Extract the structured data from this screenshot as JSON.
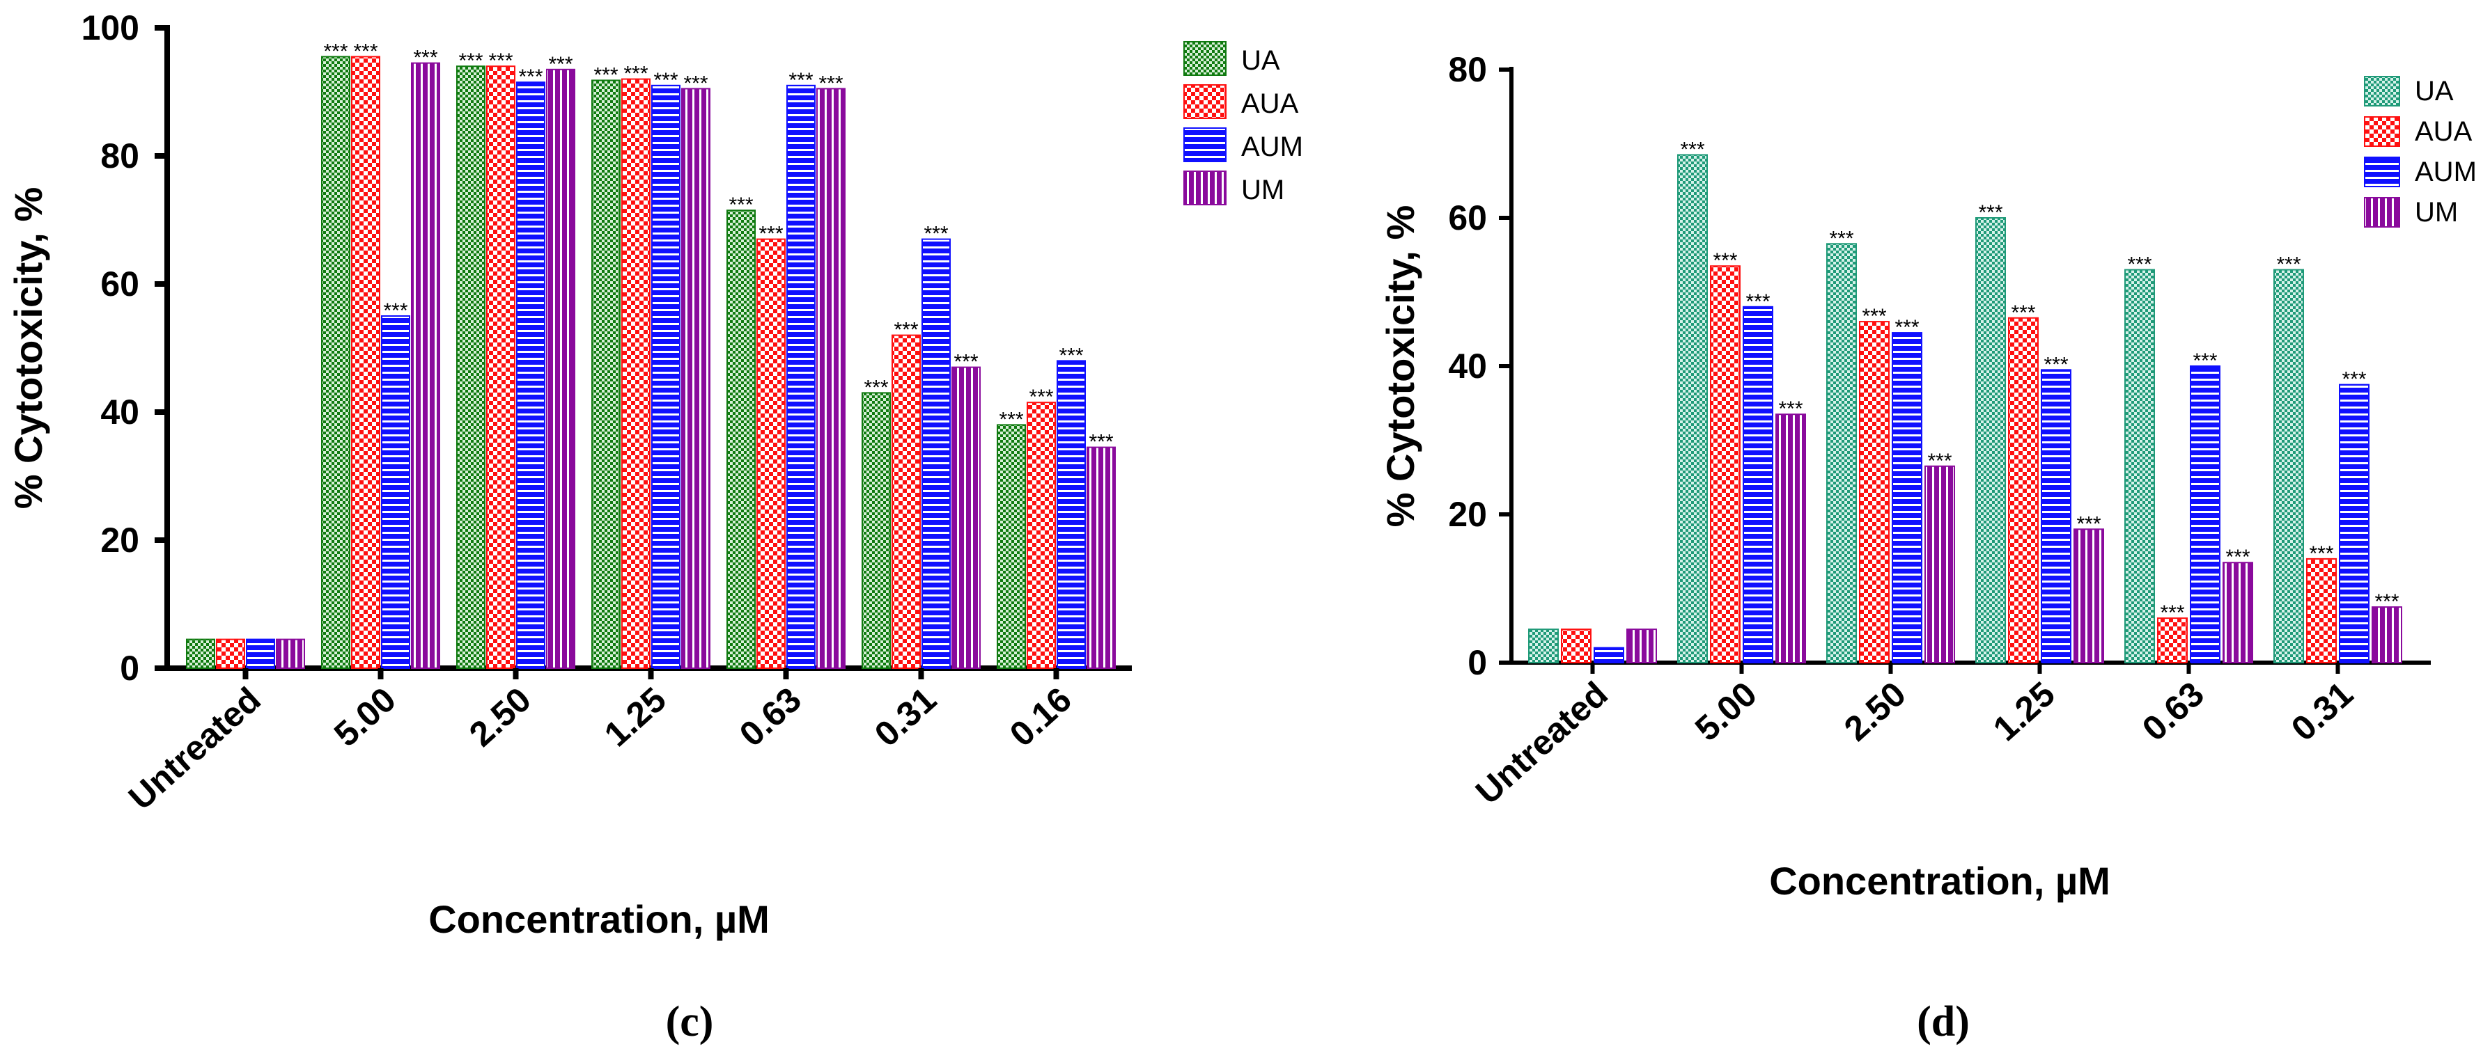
{
  "figure": {
    "panel_labels": [
      "(c)",
      "(d)"
    ]
  },
  "colors": {
    "UA_c": "#0f7a0f",
    "UA_d": "#1f9a78",
    "AUA": "#ff1010",
    "AUM": "#1010ff",
    "UM": "#8a0a9c"
  },
  "chart_data": [
    {
      "type": "bar",
      "panel": "(c)",
      "categories": [
        "Untreated",
        "5.00",
        "2.50",
        "1.25",
        "0.63",
        "0.31",
        "0.16"
      ],
      "series": [
        {
          "name": "UA",
          "values": [
            4.5,
            95.5,
            94.0,
            91.8,
            71.5,
            43.0,
            38.0
          ],
          "sig": [
            "",
            "***",
            "***",
            "***",
            "***",
            "***",
            "***"
          ]
        },
        {
          "name": "AUA",
          "values": [
            4.5,
            95.5,
            94.0,
            92.0,
            67.0,
            52.0,
            41.5
          ],
          "sig": [
            "",
            "***",
            "***",
            "***",
            "***",
            "***",
            "***"
          ]
        },
        {
          "name": "AUM",
          "values": [
            4.5,
            55.0,
            91.5,
            91.0,
            91.0,
            67.0,
            48.0
          ],
          "sig": [
            "",
            "***",
            "***",
            "***",
            "***",
            "***",
            "***"
          ]
        },
        {
          "name": "UM",
          "values": [
            4.5,
            94.5,
            93.5,
            90.5,
            90.5,
            47.0,
            34.5
          ],
          "sig": [
            "",
            "***",
            "***",
            "***",
            "***",
            "***",
            "***"
          ]
        }
      ],
      "title": "",
      "xlabel": "Concentration, µM",
      "ylabel": "% Cytotoxicity, %",
      "ylim": [
        0,
        100
      ],
      "yticks": [
        "0",
        "20",
        "40",
        "60",
        "80",
        "100"
      ],
      "legend": "top-right",
      "grid": false
    },
    {
      "type": "bar",
      "panel": "(d)",
      "categories": [
        "Untreated",
        "5.00",
        "2.50",
        "1.25",
        "0.63",
        "0.31"
      ],
      "series": [
        {
          "name": "UA",
          "values": [
            4.5,
            68.5,
            56.5,
            60.0,
            53.0,
            53.0
          ],
          "sig": [
            "",
            "***",
            "***",
            "***",
            "***",
            "***"
          ]
        },
        {
          "name": "AUA",
          "values": [
            4.5,
            53.5,
            46.0,
            46.5,
            6.0,
            14.0
          ],
          "sig": [
            "",
            "***",
            "***",
            "***",
            "***",
            "***"
          ]
        },
        {
          "name": "AUM",
          "values": [
            2.0,
            48.0,
            44.5,
            39.5,
            40.0,
            37.5
          ],
          "sig": [
            "",
            "***",
            "***",
            "***",
            "***",
            "***"
          ]
        },
        {
          "name": "UM",
          "values": [
            4.5,
            33.5,
            26.5,
            18.0,
            13.5,
            7.5
          ],
          "sig": [
            "",
            "***",
            "***",
            "***",
            "***",
            "***"
          ]
        }
      ],
      "title": "",
      "xlabel": "Concentration, µM",
      "ylabel": "% Cytotoxicity, %",
      "ylim": [
        0,
        80
      ],
      "yticks": [
        "0",
        "20",
        "40",
        "60",
        "80"
      ],
      "legend": "top-right",
      "grid": false
    }
  ]
}
